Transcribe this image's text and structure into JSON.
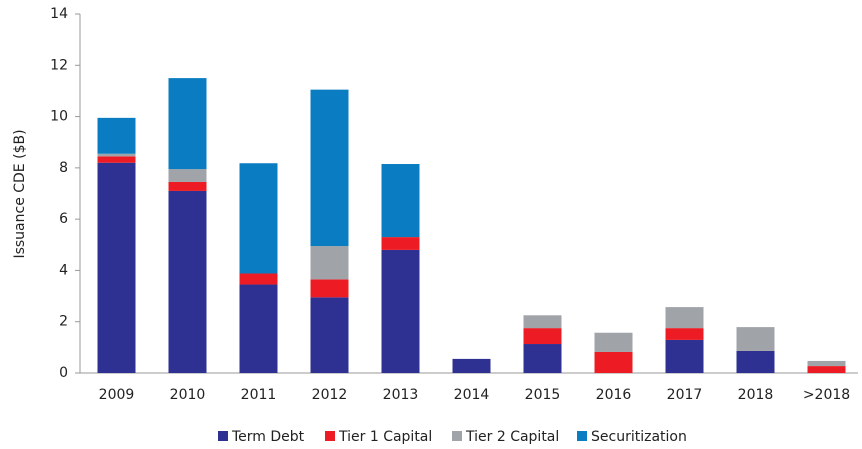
{
  "chart_data": {
    "type": "bar",
    "stacked": true,
    "y_label": "Issuance CDE ($B)",
    "categories": [
      "2009",
      "2010",
      "2011",
      "2012",
      "2013",
      "2014",
      "2015",
      "2016",
      "2017",
      "2018",
      ">2018"
    ],
    "series": [
      {
        "name": "Term Debt",
        "color": "#2e3192",
        "values": [
          8.2,
          7.1,
          3.45,
          2.95,
          4.8,
          0.55,
          1.13,
          0,
          1.29,
          0.86,
          0
        ]
      },
      {
        "name": "Tier 1 Capital",
        "color": "#ed1c24",
        "values": [
          0.25,
          0.35,
          0.43,
          0.7,
          0.5,
          0,
          0.62,
          0.82,
          0.46,
          0,
          0.27
        ]
      },
      {
        "name": "Tier 2 Capital",
        "color": "#a0a3a8",
        "values": [
          0.1,
          0.5,
          0,
          1.3,
          0,
          0,
          0.5,
          0.75,
          0.82,
          0.93,
          0.2
        ]
      },
      {
        "name": "Securitization",
        "color": "#0a7dc2",
        "values": [
          1.4,
          3.55,
          4.3,
          6.1,
          2.85,
          0,
          0,
          0,
          0,
          0,
          0
        ]
      }
    ],
    "ylim": [
      0,
      14
    ],
    "yticks": [
      0,
      2,
      4,
      6,
      8,
      10,
      12,
      14
    ],
    "grid": false,
    "legend": "bottom"
  }
}
